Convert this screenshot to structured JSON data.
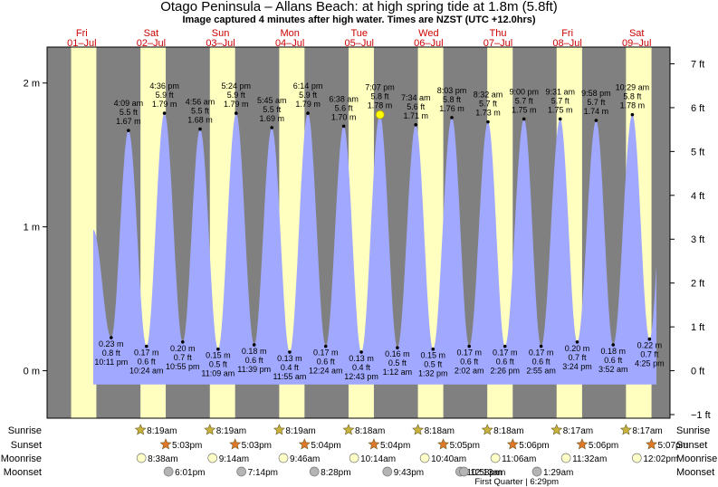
{
  "title": "Otago Peninsula – Allans Beach: at high  spring tide at 1.8m (5.8ft)",
  "subtitle": "Image captured 4 minutes after high water. Times are NZST (UTC +12.0hrs)",
  "colors": {
    "night": "#808080",
    "day": "#ffffc0",
    "tide": "#a0a8ff",
    "day_label": "#cc0000",
    "sun_marker": "#c8b43c",
    "sunset_marker": "#e07828",
    "moon_marker": "#ffffc8",
    "moonset_marker": "#b4b4b4"
  },
  "chart_data": {
    "type": "area",
    "title": "Otago Peninsula – Allans Beach: at high  spring tide at 1.8m (5.8ft)",
    "x_unit": "days from 01-Jul 00:00 NZST",
    "xlim": [
      0,
      8.98
    ],
    "ylim": [
      -0.33,
      2.25
    ],
    "y_ticks_m": [
      {
        "v": 0,
        "label": "0 m"
      },
      {
        "v": 1,
        "label": "1 m"
      },
      {
        "v": 2,
        "label": "2 m"
      }
    ],
    "y_ticks_ft": [
      {
        "v": -1,
        "label": "−1 ft"
      },
      {
        "v": 0,
        "label": "0 ft"
      },
      {
        "v": 1,
        "label": "1 ft"
      },
      {
        "v": 2,
        "label": "2 ft"
      },
      {
        "v": 3,
        "label": "3 ft"
      },
      {
        "v": 4,
        "label": "4 ft"
      },
      {
        "v": 5,
        "label": "5 ft"
      },
      {
        "v": 6,
        "label": "6 ft"
      },
      {
        "v": 7,
        "label": "7 ft"
      }
    ],
    "days": [
      {
        "name": "Fri",
        "date": "01–Jul",
        "sunrise": "",
        "sunset": "",
        "moonrise": "",
        "moonset": ""
      },
      {
        "name": "Sat",
        "date": "02–Jul",
        "sunrise": "8:19am",
        "sunset": "5:03pm",
        "moonrise": "8:38am",
        "moonset": "6:01pm"
      },
      {
        "name": "Sun",
        "date": "03–Jul",
        "sunrise": "8:19am",
        "sunset": "5:03pm",
        "moonrise": "9:14am",
        "moonset": "7:14pm"
      },
      {
        "name": "Mon",
        "date": "04–Jul",
        "sunrise": "8:19am",
        "sunset": "5:04pm",
        "moonrise": "9:46am",
        "moonset": "8:28pm"
      },
      {
        "name": "Tue",
        "date": "05–Jul",
        "sunrise": "8:18am",
        "sunset": "5:04pm",
        "moonrise": "10:14am",
        "moonset": "9:43pm"
      },
      {
        "name": "Wed",
        "date": "06–Jul",
        "sunrise": "8:18am",
        "sunset": "5:05pm",
        "moonrise": "10:40am",
        "moonset": "10:58pm"
      },
      {
        "name": "Thu",
        "date": "07–Jul",
        "sunrise": "8:18am",
        "sunset": "5:06pm",
        "moonrise": "11:06am",
        "moonset": "12:13am"
      },
      {
        "name": "Fri",
        "date": "08–Jul",
        "sunrise": "8:17am",
        "sunset": "5:06pm",
        "moonrise": "11:32am",
        "moonset": "1:29am"
      },
      {
        "name": "Sat",
        "date": "09–Jul",
        "sunrise": "8:17am",
        "sunset": "5:07pm",
        "moonrise": "12:02pm",
        "moonset": ""
      }
    ],
    "tides": [
      {
        "type": "low",
        "time": "10:11 pm",
        "ft": "0.8 ft",
        "m": 0.23,
        "m_label": "0.23 m",
        "x": 0.924
      },
      {
        "type": "high",
        "time": "4:09 am",
        "ft": "5.5 ft",
        "m": 1.67,
        "m_label": "1.67 m",
        "x": 1.173
      },
      {
        "type": "low",
        "time": "10:24 am",
        "ft": "0.6 ft",
        "m": 0.17,
        "m_label": "0.17 m",
        "x": 1.433
      },
      {
        "type": "high",
        "time": "4:36 pm",
        "ft": "5.9 ft",
        "m": 1.79,
        "m_label": "1.79 m",
        "x": 1.692
      },
      {
        "type": "low",
        "time": "10:55 pm",
        "ft": "0.7 ft",
        "m": 0.2,
        "m_label": "0.20 m",
        "x": 1.955
      },
      {
        "type": "high",
        "time": "4:56 am",
        "ft": "5.5 ft",
        "m": 1.68,
        "m_label": "1.68 m",
        "x": 2.206
      },
      {
        "type": "low",
        "time": "11:09 am",
        "ft": "0.5 ft",
        "m": 0.15,
        "m_label": "0.15 m",
        "x": 2.465
      },
      {
        "type": "high",
        "time": "5:24 pm",
        "ft": "5.9 ft",
        "m": 1.79,
        "m_label": "1.79 m",
        "x": 2.725
      },
      {
        "type": "low",
        "time": "11:39 pm",
        "ft": "0.6 ft",
        "m": 0.18,
        "m_label": "0.18 m",
        "x": 2.985
      },
      {
        "type": "high",
        "time": "5:45 am",
        "ft": "5.5 ft",
        "m": 1.69,
        "m_label": "1.69 m",
        "x": 3.24
      },
      {
        "type": "low",
        "time": "11:55 am",
        "ft": "0.4 ft",
        "m": 0.13,
        "m_label": "0.13 m",
        "x": 3.497
      },
      {
        "type": "high",
        "time": "6:14 pm",
        "ft": "5.9 ft",
        "m": 1.79,
        "m_label": "1.79 m",
        "x": 3.76
      },
      {
        "type": "low",
        "time": "12:24 am",
        "ft": "0.6 ft",
        "m": 0.17,
        "m_label": "0.17 m",
        "x": 4.017
      },
      {
        "type": "high",
        "time": "6:38 am",
        "ft": "5.6 ft",
        "m": 1.7,
        "m_label": "1.70 m",
        "x": 4.276
      },
      {
        "type": "low",
        "time": "12:43 pm",
        "ft": "0.4 ft",
        "m": 0.13,
        "m_label": "0.13 m",
        "x": 4.53
      },
      {
        "type": "high",
        "time": "7:07 pm",
        "ft": "5.8 ft",
        "m": 1.78,
        "m_label": "1.78 m",
        "x": 4.797
      },
      {
        "type": "low",
        "time": "1:12 am",
        "ft": "0.5 ft",
        "m": 0.16,
        "m_label": "0.16 m",
        "x": 5.05
      },
      {
        "type": "high",
        "time": "7:34 am",
        "ft": "5.6 ft",
        "m": 1.71,
        "m_label": "1.71 m",
        "x": 5.315
      },
      {
        "type": "low",
        "time": "1:32 pm",
        "ft": "0.5 ft",
        "m": 0.15,
        "m_label": "0.15 m",
        "x": 5.564
      },
      {
        "type": "high",
        "time": "8:03 pm",
        "ft": "5.8 ft",
        "m": 1.76,
        "m_label": "1.76 m",
        "x": 5.835
      },
      {
        "type": "low",
        "time": "2:02 am",
        "ft": "0.6 ft",
        "m": 0.17,
        "m_label": "0.17 m",
        "x": 6.085
      },
      {
        "type": "high",
        "time": "8:32 am",
        "ft": "5.7 ft",
        "m": 1.73,
        "m_label": "1.73 m",
        "x": 6.356
      },
      {
        "type": "low",
        "time": "2:26 pm",
        "ft": "0.6 ft",
        "m": 0.17,
        "m_label": "0.17 m",
        "x": 6.601
      },
      {
        "type": "high",
        "time": "9:00 pm",
        "ft": "5.7 ft",
        "m": 1.75,
        "m_label": "1.75 m",
        "x": 6.875
      },
      {
        "type": "low",
        "time": "2:55 am",
        "ft": "0.6 ft",
        "m": 0.17,
        "m_label": "0.17 m",
        "x": 7.122
      },
      {
        "type": "high",
        "time": "9:31 am",
        "ft": "5.7 ft",
        "m": 1.75,
        "m_label": "1.75 m",
        "x": 7.397
      },
      {
        "type": "low",
        "time": "3:24 pm",
        "ft": "0.7 ft",
        "m": 0.2,
        "m_label": "0.20 m",
        "x": 7.642
      },
      {
        "type": "high",
        "time": "9:58 pm",
        "ft": "5.7 ft",
        "m": 1.74,
        "m_label": "1.74 m",
        "x": 7.915
      },
      {
        "type": "low",
        "time": "3:52 am",
        "ft": "0.6 ft",
        "m": 0.18,
        "m_label": "0.18 m",
        "x": 8.161
      },
      {
        "type": "high",
        "time": "10:29 am",
        "ft": "5.8 ft",
        "m": 1.78,
        "m_label": "1.78 m",
        "x": 8.437
      },
      {
        "type": "low",
        "time": "4:25 pm",
        "ft": "0.7 ft",
        "m": 0.22,
        "m_label": "0.22 m",
        "x": 8.684
      }
    ],
    "current": {
      "time": "7:11 pm",
      "x": 4.8,
      "m": 1.78
    },
    "row_labels": [
      "Sunrise",
      "Sunset",
      "Moonrise",
      "Moonset"
    ],
    "moon_phase": "First Quarter | 6:29pm"
  }
}
